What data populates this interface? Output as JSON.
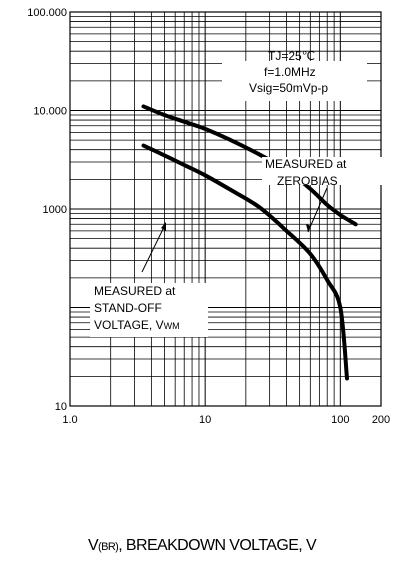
{
  "chart_data": {
    "type": "line",
    "xscale": "log",
    "yscale": "log",
    "xlim": [
      1,
      200
    ],
    "ylim": [
      10,
      100000
    ],
    "x_tick_labels": [
      {
        "value": 1,
        "label": "1.0"
      },
      {
        "value": 10,
        "label": "10"
      },
      {
        "value": 100,
        "label": "100"
      },
      {
        "value": 200,
        "label": "200"
      }
    ],
    "y_tick_labels": [
      {
        "value": 100000,
        "label": "100.000"
      },
      {
        "value": 10000,
        "label": "10.000"
      },
      {
        "value": 1000,
        "label": "1000"
      },
      {
        "value": 10,
        "label": "10"
      }
    ],
    "xlabel": {
      "prefix": "V",
      "subscript": "(BR)",
      "rest": ", BREAKDOWN VOLTAGE, V"
    },
    "conditions": [
      "TJ=25℃",
      "f=1.0MHz",
      "Vsig=50mVp-p"
    ],
    "grid": true,
    "series": [
      {
        "name": "MEASURED at ZEROBIAS",
        "label_lines": [
          "MEASURED at",
          "ZEROBIAS"
        ],
        "x": [
          3.5,
          5,
          7,
          10,
          15,
          25,
          40,
          60,
          80,
          100,
          130
        ],
        "y": [
          11000,
          9000,
          7700,
          6500,
          5100,
          3600,
          2500,
          1600,
          1100,
          870,
          700
        ]
      },
      {
        "name": "MEASURED at STAND-OFF VOLTAGE, VWM",
        "label_lines": [
          "MEASURED at",
          "STAND-OFF"
        ],
        "label_last": {
          "text": "VOLTAGE, V",
          "subscript": "WM"
        },
        "x": [
          3.5,
          5,
          7,
          10,
          15,
          25,
          40,
          60,
          80,
          100,
          112
        ],
        "y": [
          4400,
          3500,
          2800,
          2200,
          1600,
          1050,
          600,
          350,
          190,
          100,
          19
        ]
      }
    ]
  }
}
